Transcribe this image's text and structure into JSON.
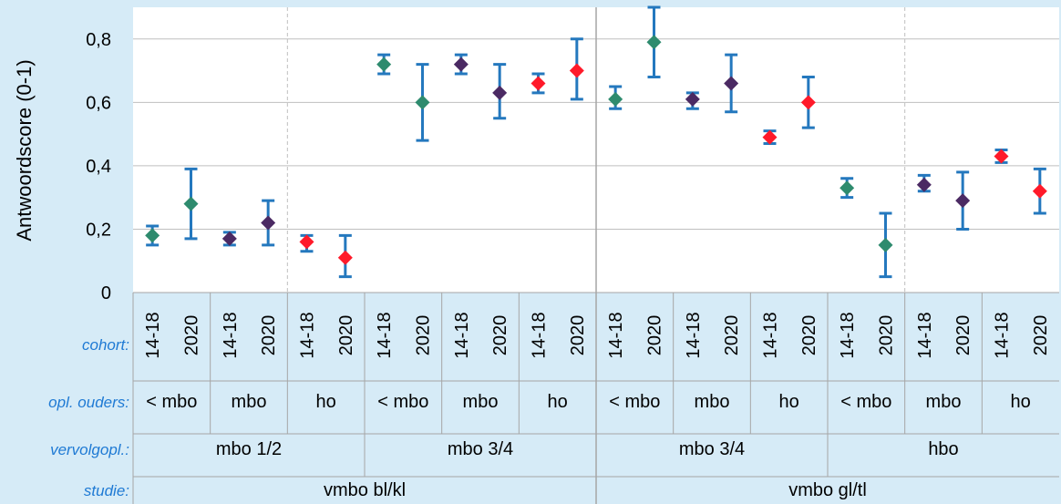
{
  "chart_data": {
    "type": "scatter",
    "ylabel": "Antwoordscore (0-1)",
    "ylim": [
      0,
      0.9
    ],
    "yticks": [
      {
        "v": 0,
        "label": "0"
      },
      {
        "v": 0.2,
        "label": "0,2"
      },
      {
        "v": 0.4,
        "label": "0,4"
      },
      {
        "v": 0.6,
        "label": "0,6"
      },
      {
        "v": 0.8,
        "label": "0,8"
      }
    ],
    "grid": true,
    "legend": "none",
    "row_titles": {
      "cohort": "cohort:",
      "ouders": "opl. ouders:",
      "vervolg": "vervolgopl.:",
      "studie": "studie:"
    },
    "points": [
      {
        "cohort": "14-18",
        "y": 0.18,
        "lo": 0.15,
        "hi": 0.21,
        "color": "#2e8b6e"
      },
      {
        "cohort": "2020",
        "y": 0.28,
        "lo": 0.17,
        "hi": 0.39,
        "color": "#2e8b6e"
      },
      {
        "cohort": "14-18",
        "y": 0.17,
        "lo": 0.15,
        "hi": 0.19,
        "color": "#4b2a63"
      },
      {
        "cohort": "2020",
        "y": 0.22,
        "lo": 0.15,
        "hi": 0.29,
        "color": "#4b2a63"
      },
      {
        "cohort": "14-18",
        "y": 0.16,
        "lo": 0.13,
        "hi": 0.18,
        "color": "#ff1a2a"
      },
      {
        "cohort": "2020",
        "y": 0.11,
        "lo": 0.05,
        "hi": 0.18,
        "color": "#ff1a2a"
      },
      {
        "cohort": "14-18",
        "y": 0.72,
        "lo": 0.69,
        "hi": 0.75,
        "color": "#2e8b6e"
      },
      {
        "cohort": "2020",
        "y": 0.6,
        "lo": 0.48,
        "hi": 0.72,
        "color": "#2e8b6e"
      },
      {
        "cohort": "14-18",
        "y": 0.72,
        "lo": 0.69,
        "hi": 0.75,
        "color": "#4b2a63"
      },
      {
        "cohort": "2020",
        "y": 0.63,
        "lo": 0.55,
        "hi": 0.72,
        "color": "#4b2a63"
      },
      {
        "cohort": "14-18",
        "y": 0.66,
        "lo": 0.63,
        "hi": 0.69,
        "color": "#ff1a2a"
      },
      {
        "cohort": "2020",
        "y": 0.7,
        "lo": 0.61,
        "hi": 0.8,
        "color": "#ff1a2a"
      },
      {
        "cohort": "14-18",
        "y": 0.61,
        "lo": 0.58,
        "hi": 0.65,
        "color": "#2e8b6e"
      },
      {
        "cohort": "2020",
        "y": 0.79,
        "lo": 0.68,
        "hi": 0.9,
        "color": "#2e8b6e"
      },
      {
        "cohort": "14-18",
        "y": 0.61,
        "lo": 0.58,
        "hi": 0.63,
        "color": "#4b2a63"
      },
      {
        "cohort": "2020",
        "y": 0.66,
        "lo": 0.57,
        "hi": 0.75,
        "color": "#4b2a63"
      },
      {
        "cohort": "14-18",
        "y": 0.49,
        "lo": 0.47,
        "hi": 0.51,
        "color": "#ff1a2a"
      },
      {
        "cohort": "2020",
        "y": 0.6,
        "lo": 0.52,
        "hi": 0.68,
        "color": "#ff1a2a"
      },
      {
        "cohort": "14-18",
        "y": 0.33,
        "lo": 0.3,
        "hi": 0.36,
        "color": "#2e8b6e"
      },
      {
        "cohort": "2020",
        "y": 0.15,
        "lo": 0.05,
        "hi": 0.25,
        "color": "#2e8b6e"
      },
      {
        "cohort": "14-18",
        "y": 0.34,
        "lo": 0.32,
        "hi": 0.37,
        "color": "#4b2a63"
      },
      {
        "cohort": "2020",
        "y": 0.29,
        "lo": 0.2,
        "hi": 0.38,
        "color": "#4b2a63"
      },
      {
        "cohort": "14-18",
        "y": 0.43,
        "lo": 0.41,
        "hi": 0.45,
        "color": "#ff1a2a"
      },
      {
        "cohort": "2020",
        "y": 0.32,
        "lo": 0.25,
        "hi": 0.39,
        "color": "#ff1a2a"
      }
    ],
    "ouders_groups": [
      "< mbo",
      "mbo",
      "ho",
      "< mbo",
      "mbo",
      "ho",
      "< mbo",
      "mbo",
      "ho",
      "< mbo",
      "mbo",
      "ho"
    ],
    "vervolg_groups": [
      "mbo 1/2",
      "mbo 3/4",
      "mbo 3/4",
      "hbo"
    ],
    "studie_groups": [
      "vmbo bl/kl",
      "vmbo gl/tl"
    ]
  }
}
